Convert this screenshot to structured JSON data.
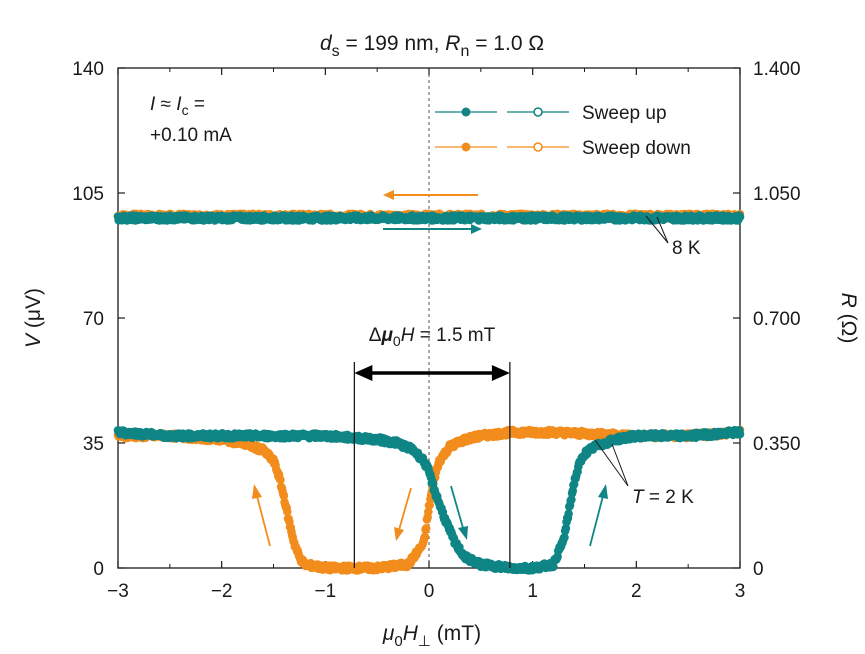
{
  "chart_data": {
    "type": "line",
    "title": {
      "ds_symbol": "d",
      "ds_sub": "s",
      "ds_value": " = 199 nm, ",
      "rn_symbol": "R",
      "rn_sub": "n",
      "rn_value": " = 1.0 Ω"
    },
    "xlabel": {
      "mu": "μ",
      "mu_sub": "0",
      "h": "H",
      "h_sub": "⊥",
      "unit": " (mT)"
    },
    "ylabel_left": {
      "sym": "V",
      "unit": " (μV)"
    },
    "ylabel_right": {
      "sym": "R",
      "unit": " (Ω)"
    },
    "xlim": [
      -3,
      3
    ],
    "ylim": [
      0,
      140
    ],
    "ylim_right": [
      0,
      1.4
    ],
    "x_ticks": [
      -3,
      -2,
      -1,
      0,
      1,
      2,
      3
    ],
    "x_tick_labels": [
      "−3",
      "−2",
      "−1",
      "0",
      "1",
      "2",
      "3"
    ],
    "y_ticks": [
      0,
      35,
      70,
      105,
      140
    ],
    "y_tick_labels": [
      "0",
      "35",
      "70",
      "105",
      "140"
    ],
    "y2_ticks": [
      0,
      0.35,
      0.7,
      1.05,
      1.4
    ],
    "y2_tick_labels": [
      "0",
      "0.350",
      "0.700",
      "1.050",
      "1.400"
    ],
    "current_note": {
      "line1_a": "I",
      "line1_b": " ≈ ",
      "line1_c": "I",
      "line1_sub": "c",
      "line1_d": " =",
      "line2": "+0.10 mA"
    },
    "legend": [
      {
        "name": "Sweep up",
        "color": "#0f8585"
      },
      {
        "name": "Sweep down",
        "color": "#f28c1c"
      }
    ],
    "delta_label": {
      "delta": "Δ",
      "mu": "μ",
      "sub": "0",
      "h": "H",
      "value": " = 1.5 mT"
    },
    "delta_range": [
      -0.72,
      0.78
    ],
    "temp_high": "8 K",
    "temp_low": {
      "sym": "T",
      "value": " = 2 K"
    },
    "colors": {
      "up": "#0f8585",
      "down": "#f28c1c",
      "axis": "#1a1a1a"
    },
    "series": [
      {
        "name": "8 K sweep up",
        "color": "#0f8585",
        "x": [
          -3,
          -2,
          -1,
          0,
          1,
          2,
          3
        ],
        "y": [
          98,
          98,
          98,
          98,
          98,
          98,
          98
        ]
      },
      {
        "name": "8 K sweep down",
        "color": "#f28c1c",
        "x": [
          -3,
          -2,
          -1,
          0,
          1,
          2,
          3
        ],
        "y": [
          98.5,
          98.5,
          98.5,
          98.5,
          98.5,
          98.5,
          98.5
        ]
      },
      {
        "name": "2 K sweep up",
        "color": "#0f8585",
        "x": [
          -3,
          -2.5,
          -2,
          -1.5,
          -1,
          -0.5,
          -0.3,
          -0.15,
          -0.05,
          0,
          0.05,
          0.15,
          0.25,
          0.35,
          0.5,
          0.8,
          1.0,
          1.2,
          1.3,
          1.35,
          1.4,
          1.45,
          1.5,
          1.6,
          1.8,
          2.0,
          2.5,
          3.0
        ],
        "y": [
          38,
          37,
          37,
          37,
          37,
          36,
          35,
          33,
          30,
          27,
          22,
          14,
          7,
          3,
          1,
          0,
          0,
          1,
          8,
          16,
          24,
          29,
          32,
          34,
          36,
          37,
          37,
          38
        ]
      },
      {
        "name": "2 K sweep down",
        "color": "#f28c1c",
        "x": [
          -3,
          -2.5,
          -2,
          -1.8,
          -1.6,
          -1.5,
          -1.45,
          -1.4,
          -1.35,
          -1.3,
          -1.25,
          -1.2,
          -1.0,
          -0.5,
          -0.2,
          -0.05,
          0,
          0.05,
          0.1,
          0.2,
          0.35,
          0.5,
          0.8,
          1.2,
          2,
          2.5,
          3
        ],
        "y": [
          37,
          37,
          36,
          35,
          33,
          30,
          26,
          20,
          13,
          7,
          3,
          1,
          0,
          0,
          1,
          7,
          17,
          25,
          30,
          34,
          36,
          37,
          38,
          38,
          37,
          37,
          38
        ]
      }
    ]
  }
}
